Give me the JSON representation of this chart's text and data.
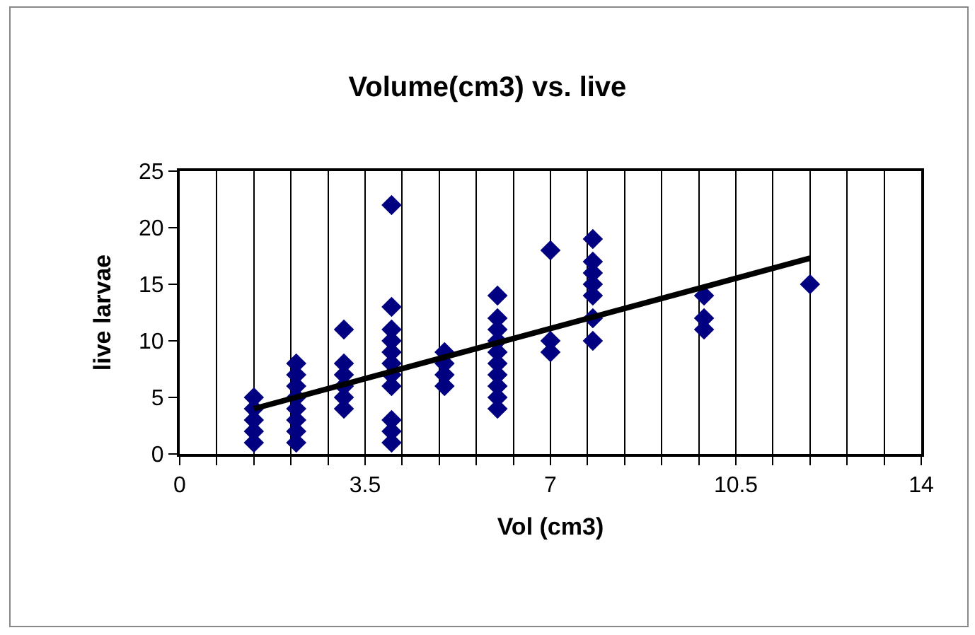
{
  "chart_data": {
    "type": "scatter",
    "title": "Volume(cm3) vs. live",
    "xlabel": "Vol (cm3)",
    "ylabel": "live larvae",
    "marker": "diamond",
    "grid": "x",
    "xlim": [
      0,
      14
    ],
    "ylim": [
      0,
      25
    ],
    "xticks": [
      0,
      {
        "value": 0.7,
        "label": null
      },
      {
        "value": 1.4,
        "label": null
      },
      {
        "value": 2.1,
        "label": null
      },
      {
        "value": 2.8,
        "label": null
      },
      3.5,
      {
        "value": 4.2,
        "label": null
      },
      {
        "value": 4.9,
        "label": null
      },
      {
        "value": 5.6,
        "label": null
      },
      {
        "value": 6.3,
        "label": null
      },
      7,
      {
        "value": 7.7,
        "label": null
      },
      {
        "value": 8.4,
        "label": null
      },
      {
        "value": 9.1,
        "label": null
      },
      {
        "value": 9.8,
        "label": null
      },
      10.5,
      {
        "value": 11.2,
        "label": null
      },
      {
        "value": 11.9,
        "label": null
      },
      {
        "value": 12.6,
        "label": null
      },
      {
        "value": 13.3,
        "label": null
      },
      14
    ],
    "yticks": [
      0,
      5,
      10,
      15,
      20,
      25
    ],
    "series": [
      {
        "color": "#000080",
        "x": [
          1.4,
          1.4,
          1.4,
          1.4,
          1.4,
          2.2,
          2.2,
          2.2,
          2.2,
          2.2,
          2.2,
          2.2,
          2.2,
          3.1,
          3.1,
          3.1,
          3.1,
          3.1,
          3.1,
          4.0,
          4.0,
          4.0,
          4.0,
          4.0,
          4.0,
          4.0,
          4.0,
          4.0,
          4.0,
          4.0,
          5.0,
          5.0,
          5.0,
          5.0,
          6.0,
          6.0,
          6.0,
          6.0,
          6.0,
          6.0,
          6.0,
          6.0,
          6.0,
          6.0,
          7.0,
          7.0,
          7.0,
          7.8,
          7.8,
          7.8,
          7.8,
          7.8,
          7.8,
          7.8,
          9.9,
          9.9,
          9.9,
          11.9
        ],
        "values": [
          1,
          2,
          3,
          4,
          5,
          1,
          2,
          3,
          4,
          5,
          6,
          7,
          8,
          4,
          5,
          6,
          7,
          8,
          11,
          1,
          2,
          3,
          6,
          7,
          8,
          9,
          10,
          11,
          13,
          22,
          6,
          7,
          8,
          9,
          4,
          5,
          6,
          7,
          8,
          9,
          10,
          11,
          12,
          14,
          9,
          10,
          18,
          10,
          12,
          14,
          15,
          16,
          17,
          19,
          11,
          12,
          14,
          15
        ]
      },
      {
        "type": "line",
        "marker": "none",
        "color": "#000000",
        "x": [
          1.4,
          11.9
        ],
        "values": [
          4.0,
          17.3
        ]
      }
    ]
  }
}
